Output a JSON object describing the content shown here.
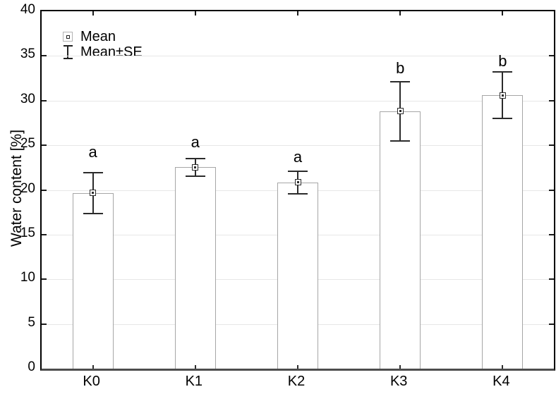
{
  "chart_data": {
    "type": "bar",
    "title": "",
    "xlabel": "",
    "ylabel": "Water content [%]",
    "ylim": [
      0,
      40
    ],
    "ytick_step": 5,
    "yticks": [
      "0",
      "5",
      "10",
      "15",
      "20",
      "25",
      "30",
      "35",
      "40"
    ],
    "grid": "horizontal",
    "legend_position": "top-left",
    "categories": [
      "K0",
      "K1",
      "K2",
      "K3",
      "K4"
    ],
    "series": [
      {
        "name": "Mean",
        "values": [
          19.65,
          22.55,
          20.85,
          28.8,
          30.6
        ]
      }
    ],
    "standard_errors": [
      2.3,
      1.0,
      1.25,
      3.3,
      2.6
    ],
    "annotations": [
      {
        "label": "a",
        "y": 24.2
      },
      {
        "label": "a",
        "y": 25.3
      },
      {
        "label": "a",
        "y": 23.7
      },
      {
        "label": "b",
        "y": 33.6
      },
      {
        "label": "b",
        "y": 34.4
      }
    ],
    "colors": {
      "bar_fill": "#ffffff",
      "bar_border": "#a6a6a6",
      "errorbar": "#2b2b2b",
      "gridline": "#e7e7e7",
      "axis": "#000000",
      "bottom_axis": "#4d4d4d"
    }
  },
  "legend": {
    "items": [
      {
        "label": "Mean",
        "marker": "square"
      },
      {
        "label": "Mean±SE",
        "marker": "errorbar"
      }
    ]
  }
}
